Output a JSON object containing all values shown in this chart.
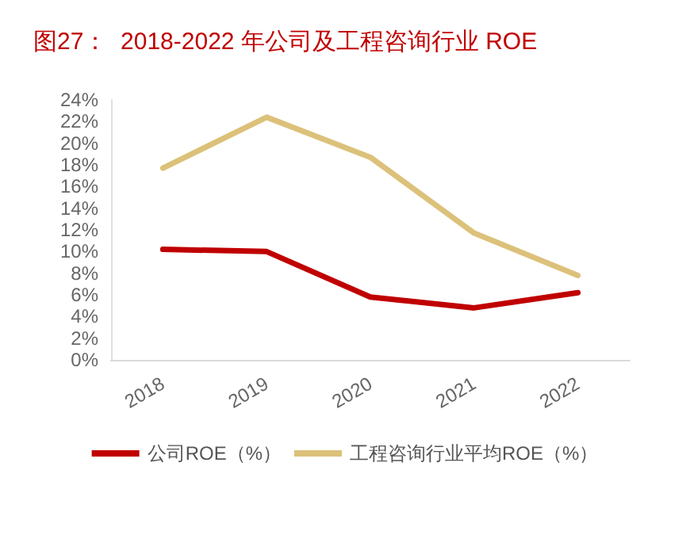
{
  "chart_data": {
    "type": "line",
    "title": "图27：  2018-2022 年公司及工程咨询行业 ROE",
    "categories": [
      "2018",
      "2019",
      "2020",
      "2021",
      "2022"
    ],
    "series": [
      {
        "name": "公司ROE（%）",
        "color": "#c00000",
        "values": [
          10.2,
          10.0,
          5.8,
          4.8,
          6.2
        ]
      },
      {
        "name": "工程咨询行业平均ROE（%）",
        "color": "#dcc17a",
        "values": [
          17.7,
          22.4,
          18.7,
          11.7,
          7.8
        ]
      }
    ],
    "ylim": [
      0,
      24
    ],
    "yticks": [
      {
        "value": 0,
        "label": "0%"
      },
      {
        "value": 2,
        "label": "2%"
      },
      {
        "value": 4,
        "label": "4%"
      },
      {
        "value": 6,
        "label": "6%"
      },
      {
        "value": 8,
        "label": "8%"
      },
      {
        "value": 10,
        "label": "10%"
      },
      {
        "value": 12,
        "label": "12%"
      },
      {
        "value": 14,
        "label": "14%"
      },
      {
        "value": 16,
        "label": "16%"
      },
      {
        "value": 18,
        "label": "18%"
      },
      {
        "value": 20,
        "label": "20%"
      },
      {
        "value": 22,
        "label": "22%"
      },
      {
        "value": 24,
        "label": "24%"
      }
    ],
    "grid": false,
    "legend": "bottom",
    "marker": "none",
    "line_style": "solid"
  }
}
